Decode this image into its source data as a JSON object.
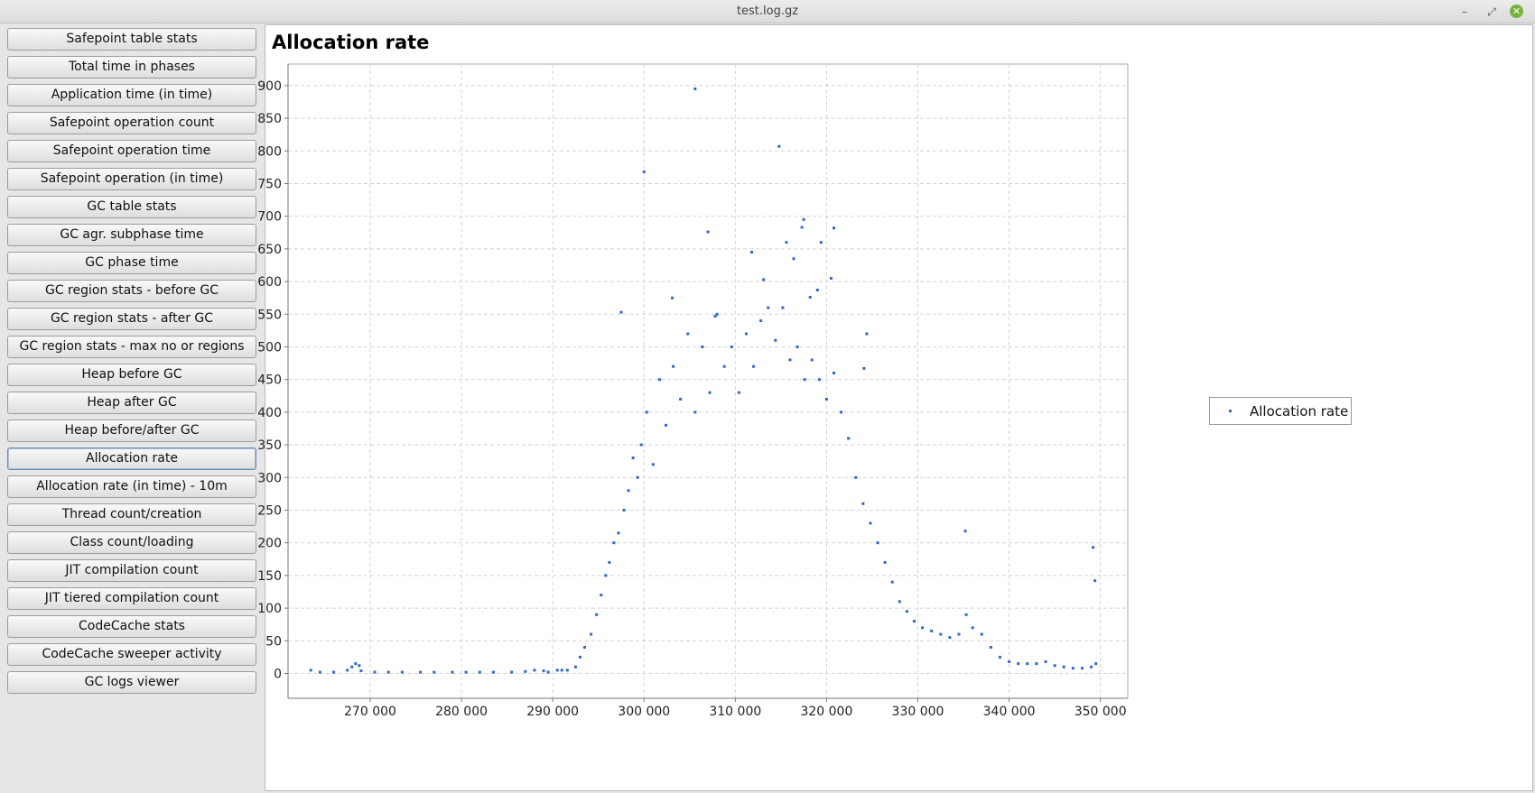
{
  "window": {
    "title": "test.log.gz"
  },
  "sidebar": {
    "items": [
      {
        "label": "Safepoint table stats"
      },
      {
        "label": "Total time in phases"
      },
      {
        "label": "Application time (in time)"
      },
      {
        "label": "Safepoint operation count"
      },
      {
        "label": "Safepoint operation time"
      },
      {
        "label": "Safepoint operation (in time)"
      },
      {
        "label": "GC table stats"
      },
      {
        "label": "GC agr. subphase time"
      },
      {
        "label": "GC phase time"
      },
      {
        "label": "GC region stats - before GC"
      },
      {
        "label": "GC region stats - after GC"
      },
      {
        "label": "GC region stats - max no or regions"
      },
      {
        "label": "Heap before GC"
      },
      {
        "label": "Heap after GC"
      },
      {
        "label": "Heap before/after GC"
      },
      {
        "label": "Allocation rate",
        "active": true
      },
      {
        "label": "Allocation rate (in time) - 10m"
      },
      {
        "label": "Thread count/creation"
      },
      {
        "label": "Class count/loading"
      },
      {
        "label": "JIT compilation count"
      },
      {
        "label": "JIT tiered compilation count"
      },
      {
        "label": "CodeCache stats"
      },
      {
        "label": "CodeCache sweeper activity"
      },
      {
        "label": "GC logs viewer"
      }
    ]
  },
  "chart_data": {
    "type": "scatter",
    "title": "Allocation rate",
    "xlabel": "",
    "ylabel": "",
    "xlim": [
      261000,
      353000
    ],
    "ylim": [
      -38,
      933
    ],
    "x_ticks": [
      270000,
      280000,
      290000,
      300000,
      310000,
      320000,
      330000,
      340000,
      350000
    ],
    "x_tick_labels": [
      "270 000",
      "280 000",
      "290 000",
      "300 000",
      "310 000",
      "320 000",
      "330 000",
      "340 000",
      "350 000"
    ],
    "y_ticks": [
      0,
      50,
      100,
      150,
      200,
      250,
      300,
      350,
      400,
      450,
      500,
      550,
      600,
      650,
      700,
      750,
      800,
      850,
      900
    ],
    "y_tick_labels": [
      "0",
      "50",
      "100",
      "150",
      "200",
      "250",
      "300",
      "350",
      "400",
      "450",
      "500",
      "550",
      "600",
      "650",
      "700",
      "750",
      "800",
      "850",
      "900"
    ],
    "grid": true,
    "legend_position": "right",
    "color": "#3366cc",
    "series": [
      {
        "name": "Allocation rate",
        "points": [
          [
            263500,
            5
          ],
          [
            264500,
            2
          ],
          [
            266000,
            2
          ],
          [
            267500,
            5
          ],
          [
            268000,
            10
          ],
          [
            268400,
            15
          ],
          [
            268800,
            12
          ],
          [
            269000,
            4
          ],
          [
            270500,
            2
          ],
          [
            272000,
            2
          ],
          [
            273500,
            2
          ],
          [
            275500,
            2
          ],
          [
            277000,
            2
          ],
          [
            279000,
            2
          ],
          [
            280500,
            2
          ],
          [
            282000,
            2
          ],
          [
            283500,
            2
          ],
          [
            285500,
            2
          ],
          [
            287000,
            3
          ],
          [
            288000,
            5
          ],
          [
            289000,
            4
          ],
          [
            289500,
            2
          ],
          [
            290500,
            5
          ],
          [
            291000,
            5
          ],
          [
            291600,
            5
          ],
          [
            292500,
            10
          ],
          [
            293000,
            25
          ],
          [
            293500,
            40
          ],
          [
            294200,
            60
          ],
          [
            294800,
            90
          ],
          [
            295300,
            120
          ],
          [
            295800,
            150
          ],
          [
            296200,
            170
          ],
          [
            296700,
            200
          ],
          [
            297200,
            215
          ],
          [
            297800,
            250
          ],
          [
            298300,
            280
          ],
          [
            298800,
            330
          ],
          [
            299300,
            300
          ],
          [
            299700,
            350
          ],
          [
            300300,
            400
          ],
          [
            301000,
            320
          ],
          [
            301700,
            450
          ],
          [
            302400,
            380
          ],
          [
            303200,
            470
          ],
          [
            304000,
            420
          ],
          [
            304800,
            520
          ],
          [
            305600,
            400
          ],
          [
            306400,
            500
          ],
          [
            307200,
            430
          ],
          [
            308000,
            550
          ],
          [
            308800,
            470
          ],
          [
            309600,
            500
          ],
          [
            310400,
            430
          ],
          [
            311200,
            520
          ],
          [
            312000,
            470
          ],
          [
            312800,
            540
          ],
          [
            313600,
            560
          ],
          [
            314400,
            510
          ],
          [
            315200,
            560
          ],
          [
            316000,
            480
          ],
          [
            316800,
            500
          ],
          [
            317600,
            450
          ],
          [
            318400,
            480
          ],
          [
            319200,
            450
          ],
          [
            320000,
            420
          ],
          [
            320800,
            460
          ],
          [
            321600,
            400
          ],
          [
            322400,
            360
          ],
          [
            323200,
            300
          ],
          [
            324000,
            260
          ],
          [
            324800,
            230
          ],
          [
            325600,
            200
          ],
          [
            326400,
            170
          ],
          [
            327200,
            140
          ],
          [
            328000,
            110
          ],
          [
            328800,
            95
          ],
          [
            329600,
            80
          ],
          [
            330500,
            70
          ],
          [
            331500,
            65
          ],
          [
            332500,
            60
          ],
          [
            333500,
            55
          ],
          [
            334500,
            60
          ],
          [
            335300,
            90
          ],
          [
            336000,
            70
          ],
          [
            337000,
            60
          ],
          [
            338000,
            40
          ],
          [
            339000,
            25
          ],
          [
            340000,
            18
          ],
          [
            341000,
            15
          ],
          [
            342000,
            15
          ],
          [
            343000,
            15
          ],
          [
            344000,
            18
          ],
          [
            345000,
            12
          ],
          [
            346000,
            10
          ],
          [
            347000,
            8
          ],
          [
            348000,
            8
          ],
          [
            349000,
            10
          ],
          [
            349500,
            15
          ],
          [
            297500,
            553
          ],
          [
            300000,
            768
          ],
          [
            303100,
            575
          ],
          [
            305600,
            895
          ],
          [
            307000,
            676
          ],
          [
            307800,
            547
          ],
          [
            311800,
            645
          ],
          [
            313100,
            603
          ],
          [
            314800,
            807
          ],
          [
            315600,
            660
          ],
          [
            316400,
            635
          ],
          [
            317300,
            683
          ],
          [
            317500,
            695
          ],
          [
            318200,
            576
          ],
          [
            319400,
            660
          ],
          [
            320500,
            605
          ],
          [
            320800,
            682
          ],
          [
            319000,
            587
          ],
          [
            335200,
            218
          ],
          [
            349200,
            193
          ],
          [
            349400,
            142
          ],
          [
            324100,
            467
          ],
          [
            324400,
            520
          ]
        ]
      }
    ]
  }
}
